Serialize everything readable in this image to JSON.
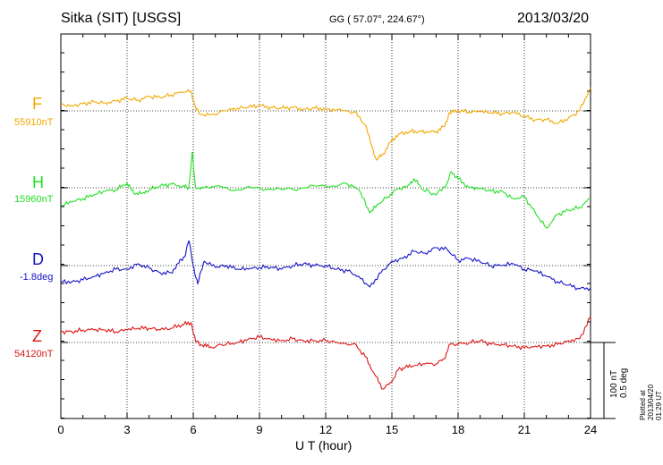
{
  "header": {
    "station": "Sitka (SIT)  [USGS]",
    "coords": "GG ( 57.07°, 224.67°)",
    "date": "2013/03/20"
  },
  "footer": {
    "plotted": "Plotted at 2013/04/20 01:29 UT",
    "scale_nt": "100 nT",
    "scale_deg": "0.5 deg"
  },
  "chart_data": {
    "type": "line",
    "xlabel": "U T (hour)",
    "xlim": [
      0,
      24
    ],
    "xticks": [
      "0",
      "3",
      "6",
      "9",
      "12",
      "15",
      "18",
      "21",
      "24"
    ],
    "grid": true,
    "series": [
      {
        "name": "F",
        "baseline": "55910nT",
        "color": "#f0a800",
        "offset_nT": [
          [
            0,
            7
          ],
          [
            0.5,
            6
          ],
          [
            1,
            8
          ],
          [
            1.5,
            10
          ],
          [
            2,
            9
          ],
          [
            2.5,
            11
          ],
          [
            3,
            14
          ],
          [
            3.5,
            12
          ],
          [
            4,
            16
          ],
          [
            4.5,
            15
          ],
          [
            5,
            18
          ],
          [
            5.5,
            21
          ],
          [
            5.9,
            22
          ],
          [
            6.1,
            4
          ],
          [
            6.3,
            -4
          ],
          [
            6.8,
            -4
          ],
          [
            7.5,
            0
          ],
          [
            8,
            3
          ],
          [
            8.5,
            4
          ],
          [
            9,
            6
          ],
          [
            9.5,
            4
          ],
          [
            10,
            3
          ],
          [
            10.5,
            4
          ],
          [
            11,
            2
          ],
          [
            11.5,
            3
          ],
          [
            12,
            2
          ],
          [
            12.5,
            1
          ],
          [
            13.3,
            -1
          ],
          [
            13.8,
            -16
          ],
          [
            14,
            -32
          ],
          [
            14.3,
            -55
          ],
          [
            14.6,
            -48
          ],
          [
            15,
            -33
          ],
          [
            15.3,
            -26
          ],
          [
            15.8,
            -23
          ],
          [
            16.2,
            -23
          ],
          [
            16.6,
            -24
          ],
          [
            17,
            -23
          ],
          [
            17.4,
            -17
          ],
          [
            17.6,
            -2
          ],
          [
            18,
            0
          ],
          [
            18.5,
            -1
          ],
          [
            19,
            -1
          ],
          [
            19.5,
            -2
          ],
          [
            20,
            -3
          ],
          [
            20.5,
            -2
          ],
          [
            21,
            -6
          ],
          [
            21.5,
            -10
          ],
          [
            22,
            -10
          ],
          [
            22.5,
            -14
          ],
          [
            23,
            -8
          ],
          [
            23.5,
            0
          ],
          [
            24,
            26
          ]
        ]
      },
      {
        "name": "H",
        "baseline": "15960nT",
        "color": "#22e022",
        "offset_nT": [
          [
            0,
            -20
          ],
          [
            0.5,
            -16
          ],
          [
            1,
            -12
          ],
          [
            1.5,
            -8
          ],
          [
            2,
            -4
          ],
          [
            2.5,
            -2
          ],
          [
            3,
            5
          ],
          [
            3.3,
            -6
          ],
          [
            3.7,
            -6
          ],
          [
            4,
            -2
          ],
          [
            4.5,
            2
          ],
          [
            5,
            4
          ],
          [
            5.5,
            2
          ],
          [
            5.8,
            0
          ],
          [
            5.95,
            40
          ],
          [
            6.1,
            0
          ],
          [
            6.5,
            0
          ],
          [
            7,
            2
          ],
          [
            8,
            -2
          ],
          [
            9,
            0
          ],
          [
            10,
            -2
          ],
          [
            11,
            0
          ],
          [
            12,
            2
          ],
          [
            13,
            4
          ],
          [
            13.5,
            -2
          ],
          [
            14,
            -28
          ],
          [
            14.4,
            -18
          ],
          [
            14.8,
            -10
          ],
          [
            15.2,
            -2
          ],
          [
            15.7,
            2
          ],
          [
            16,
            10
          ],
          [
            16.4,
            -2
          ],
          [
            17,
            -8
          ],
          [
            17.5,
            5
          ],
          [
            17.7,
            18
          ],
          [
            18,
            10
          ],
          [
            18.5,
            0
          ],
          [
            19,
            0
          ],
          [
            19.5,
            -4
          ],
          [
            20,
            -4
          ],
          [
            20.5,
            -12
          ],
          [
            21,
            -10
          ],
          [
            21.5,
            -28
          ],
          [
            22,
            -45
          ],
          [
            22.5,
            -30
          ],
          [
            23,
            -25
          ],
          [
            23.5,
            -22
          ],
          [
            24,
            -12
          ]
        ]
      },
      {
        "name": "D",
        "baseline": "-1.8deg",
        "color": "#1414c8",
        "offset_nT": [
          [
            0,
            -18
          ],
          [
            0.5,
            -18
          ],
          [
            1,
            -16
          ],
          [
            1.5,
            -12
          ],
          [
            2,
            -8
          ],
          [
            2.5,
            -4
          ],
          [
            3,
            -4
          ],
          [
            3.5,
            2
          ],
          [
            4,
            -3
          ],
          [
            4.5,
            -8
          ],
          [
            5,
            -8
          ],
          [
            5.3,
            2
          ],
          [
            5.6,
            10
          ],
          [
            5.8,
            28
          ],
          [
            6,
            0
          ],
          [
            6.2,
            -20
          ],
          [
            6.5,
            5
          ],
          [
            7,
            -2
          ],
          [
            7.5,
            0
          ],
          [
            8,
            -4
          ],
          [
            8.5,
            -4
          ],
          [
            9,
            -2
          ],
          [
            9.5,
            -2
          ],
          [
            10,
            -4
          ],
          [
            10.5,
            0
          ],
          [
            11,
            2
          ],
          [
            11.5,
            0
          ],
          [
            12,
            0
          ],
          [
            12.5,
            -4
          ],
          [
            13,
            -6
          ],
          [
            13.5,
            -12
          ],
          [
            14,
            -24
          ],
          [
            14.5,
            -8
          ],
          [
            15,
            5
          ],
          [
            15.5,
            8
          ],
          [
            16,
            16
          ],
          [
            16.5,
            14
          ],
          [
            17,
            20
          ],
          [
            17.5,
            18
          ],
          [
            18,
            6
          ],
          [
            18.5,
            8
          ],
          [
            19,
            4
          ],
          [
            19.5,
            0
          ],
          [
            20,
            0
          ],
          [
            20.5,
            2
          ],
          [
            21,
            -4
          ],
          [
            21.5,
            -6
          ],
          [
            22,
            -12
          ],
          [
            22.5,
            -18
          ],
          [
            23,
            -22
          ],
          [
            23.5,
            -26
          ],
          [
            24,
            -25
          ]
        ]
      },
      {
        "name": "Z",
        "baseline": "54120nT",
        "color": "#e01414",
        "offset_nT": [
          [
            0,
            12
          ],
          [
            0.5,
            12
          ],
          [
            1,
            14
          ],
          [
            1.5,
            14
          ],
          [
            2,
            14
          ],
          [
            2.5,
            12
          ],
          [
            3,
            14
          ],
          [
            3.5,
            16
          ],
          [
            4,
            16
          ],
          [
            4.5,
            14
          ],
          [
            5,
            16
          ],
          [
            5.5,
            20
          ],
          [
            5.9,
            22
          ],
          [
            6.1,
            2
          ],
          [
            6.4,
            -3
          ],
          [
            6.8,
            -5
          ],
          [
            7.5,
            -2
          ],
          [
            8,
            0
          ],
          [
            8.5,
            4
          ],
          [
            9,
            6
          ],
          [
            9.5,
            4
          ],
          [
            10,
            2
          ],
          [
            10.5,
            4
          ],
          [
            11,
            2
          ],
          [
            11.5,
            2
          ],
          [
            12,
            2
          ],
          [
            12.5,
            0
          ],
          [
            13.3,
            -1
          ],
          [
            13.8,
            -16
          ],
          [
            14.2,
            -35
          ],
          [
            14.6,
            -52
          ],
          [
            15,
            -44
          ],
          [
            15.3,
            -30
          ],
          [
            15.6,
            -28
          ],
          [
            16,
            -26
          ],
          [
            16.5,
            -24
          ],
          [
            17,
            -24
          ],
          [
            17.4,
            -18
          ],
          [
            17.6,
            -2
          ],
          [
            18,
            -2
          ],
          [
            18.5,
            0
          ],
          [
            19,
            2
          ],
          [
            19.5,
            -2
          ],
          [
            20,
            -2
          ],
          [
            20.5,
            -4
          ],
          [
            21,
            -6
          ],
          [
            21.5,
            -4
          ],
          [
            22,
            -4
          ],
          [
            22.5,
            -2
          ],
          [
            23,
            2
          ],
          [
            23.5,
            4
          ],
          [
            24,
            28
          ]
        ]
      }
    ]
  }
}
